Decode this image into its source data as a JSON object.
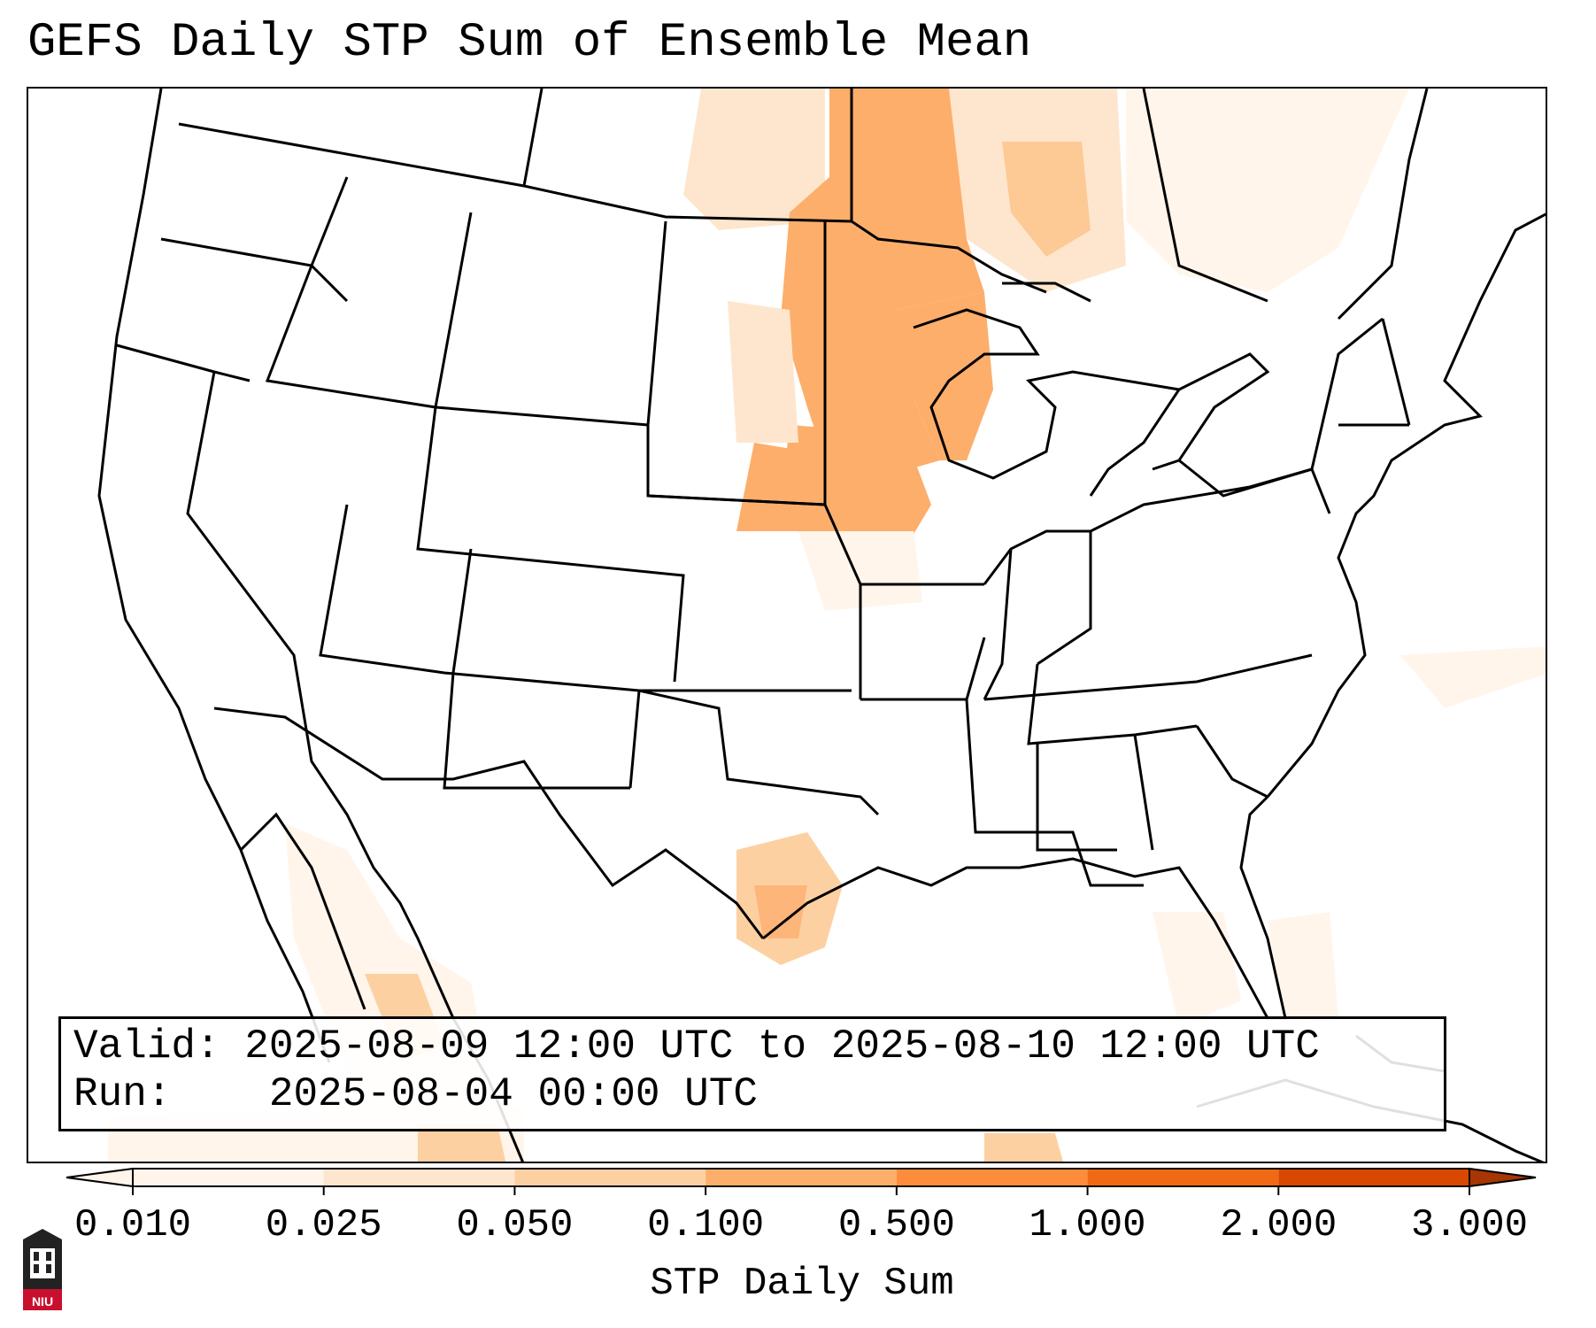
{
  "title": "GEFS Daily STP Sum of Ensemble Mean",
  "info": {
    "valid_label": "Valid:",
    "valid_value": "2025-08-09 12:00 UTC to 2025-08-10 12:00 UTC",
    "run_label": "Run:",
    "run_value": "2025-08-04 00:00 UTC"
  },
  "colorbar": {
    "label": "STP Daily Sum",
    "ticks": [
      "0.010",
      "0.025",
      "0.050",
      "0.100",
      "0.500",
      "1.000",
      "2.000",
      "3.000"
    ],
    "colors": [
      "#fff5eb",
      "#fee6ce",
      "#fdd0a2",
      "#fdae6b",
      "#fd8d3c",
      "#f16913",
      "#d94801",
      "#a63603"
    ]
  },
  "logo": {
    "text": "NIU",
    "color": "#c8102e"
  }
}
